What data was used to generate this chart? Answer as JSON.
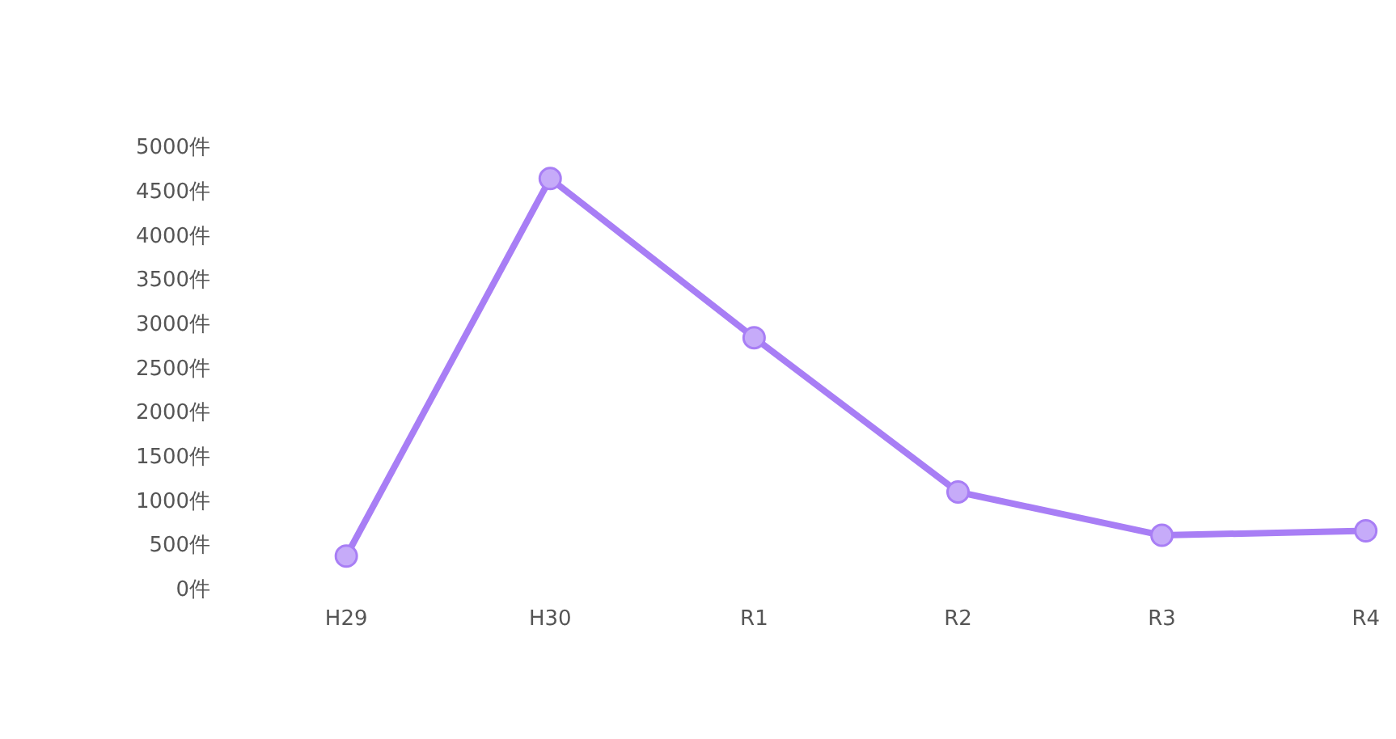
{
  "chart_data": {
    "type": "line",
    "categories": [
      "H29",
      "H30",
      "R1",
      "R2",
      "R3",
      "R4"
    ],
    "series": [
      {
        "color": "#a87ef5",
        "values": [
          390,
          4660,
          2860,
          1115,
          625,
          675
        ]
      }
    ],
    "ylim": [
      0,
      5000
    ],
    "yticks": [
      {
        "value": 0,
        "label": "0件"
      },
      {
        "value": 500,
        "label": "500件"
      },
      {
        "value": 1000,
        "label": "1000件"
      },
      {
        "value": 1500,
        "label": "1500件"
      },
      {
        "value": 2000,
        "label": "2000件"
      },
      {
        "value": 2500,
        "label": "2500件"
      },
      {
        "value": 3000,
        "label": "3000件"
      },
      {
        "value": 3500,
        "label": "3500件"
      },
      {
        "value": 4000,
        "label": "4000件"
      },
      {
        "value": 4500,
        "label": "4500件"
      },
      {
        "value": 5000,
        "label": "5000件"
      }
    ],
    "grid": false,
    "legend": false,
    "marker": "circle",
    "line_style": "solid"
  }
}
